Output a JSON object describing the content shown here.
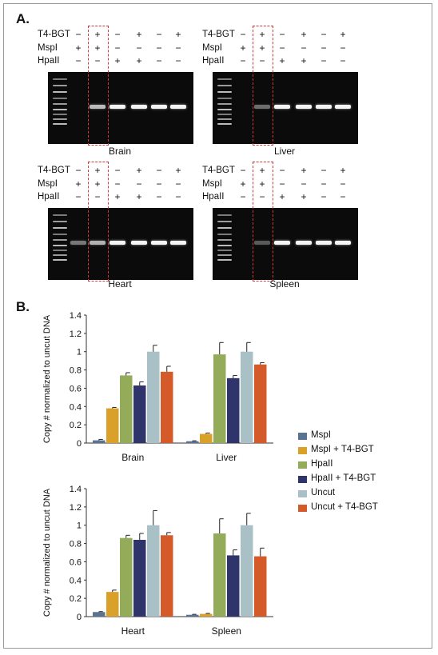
{
  "panels": {
    "a_label": "A.",
    "b_label": "B."
  },
  "gel_labels": {
    "t4bgt": "T4-BGT",
    "mspi": "MspI",
    "hpaii": "HpaII",
    "rows": [
      [
        "−",
        "+",
        "−",
        "+",
        "−",
        "+"
      ],
      [
        "+",
        "+",
        "−",
        "−",
        "−",
        "−"
      ],
      [
        "−",
        "−",
        "+",
        "+",
        "−",
        "−"
      ]
    ]
  },
  "gels": [
    {
      "tissue": "Brain",
      "lane_intensity": [
        0.0,
        0.65,
        0.95,
        0.95,
        0.95,
        0.95
      ]
    },
    {
      "tissue": "Liver",
      "lane_intensity": [
        0.0,
        0.25,
        0.95,
        0.95,
        0.95,
        0.95
      ]
    },
    {
      "tissue": "Heart",
      "lane_intensity": [
        0.3,
        0.6,
        0.95,
        0.95,
        0.95,
        0.95
      ]
    },
    {
      "tissue": "Spleen",
      "lane_intensity": [
        0.0,
        0.15,
        0.95,
        0.95,
        0.95,
        0.95
      ]
    }
  ],
  "colors": {
    "mspi": "#5a7390",
    "mspi_t4": "#d9a12a",
    "hpaii": "#94ab5a",
    "hpaii_t4": "#2f356b",
    "uncut": "#a9c1c6",
    "uncut_t4": "#d55a2a",
    "gel_box": "#d23a3a"
  },
  "chart_data": [
    {
      "type": "bar",
      "ylabel": "Copy # normalized to uncut DNA",
      "ylim": [
        0,
        1.4
      ],
      "yticks": [
        "0",
        "0.2",
        "0.4",
        "0.6",
        "0.8",
        "1",
        "1.2",
        "1.4"
      ],
      "categories": [
        "Brain",
        "Liver"
      ],
      "series": [
        {
          "name": "MspI",
          "values": [
            0.03,
            0.02
          ],
          "errors": [
            0.01,
            0.005
          ]
        },
        {
          "name": "MspI + T4-BGT",
          "values": [
            0.38,
            0.1
          ],
          "errors": [
            0.01,
            0.01
          ]
        },
        {
          "name": "HpaII",
          "values": [
            0.74,
            0.97
          ],
          "errors": [
            0.03,
            0.13
          ]
        },
        {
          "name": "HpaII + T4-BGT",
          "values": [
            0.63,
            0.71
          ],
          "errors": [
            0.04,
            0.03
          ]
        },
        {
          "name": "Uncut",
          "values": [
            1.0,
            1.0
          ],
          "errors": [
            0.07,
            0.1
          ]
        },
        {
          "name": "Uncut + T4-BGT",
          "values": [
            0.78,
            0.86
          ],
          "errors": [
            0.06,
            0.02
          ]
        }
      ]
    },
    {
      "type": "bar",
      "ylabel": "Copy # normalized to uncut DNA",
      "ylim": [
        0,
        1.4
      ],
      "yticks": [
        "0",
        "0.2",
        "0.4",
        "0.6",
        "0.8",
        "1",
        "1.2",
        "1.4"
      ],
      "categories": [
        "Heart",
        "Spleen"
      ],
      "series": [
        {
          "name": "MspI",
          "values": [
            0.05,
            0.02
          ],
          "errors": [
            0.005,
            0.005
          ]
        },
        {
          "name": "MspI + T4-BGT",
          "values": [
            0.27,
            0.03
          ],
          "errors": [
            0.02,
            0.005
          ]
        },
        {
          "name": "HpaII",
          "values": [
            0.86,
            0.91
          ],
          "errors": [
            0.03,
            0.16
          ]
        },
        {
          "name": "HpaII + T4-BGT",
          "values": [
            0.84,
            0.67
          ],
          "errors": [
            0.07,
            0.06
          ]
        },
        {
          "name": "Uncut",
          "values": [
            1.0,
            1.0
          ],
          "errors": [
            0.16,
            0.13
          ]
        },
        {
          "name": "Uncut + T4-BGT",
          "values": [
            0.89,
            0.66
          ],
          "errors": [
            0.03,
            0.09
          ]
        }
      ]
    }
  ]
}
